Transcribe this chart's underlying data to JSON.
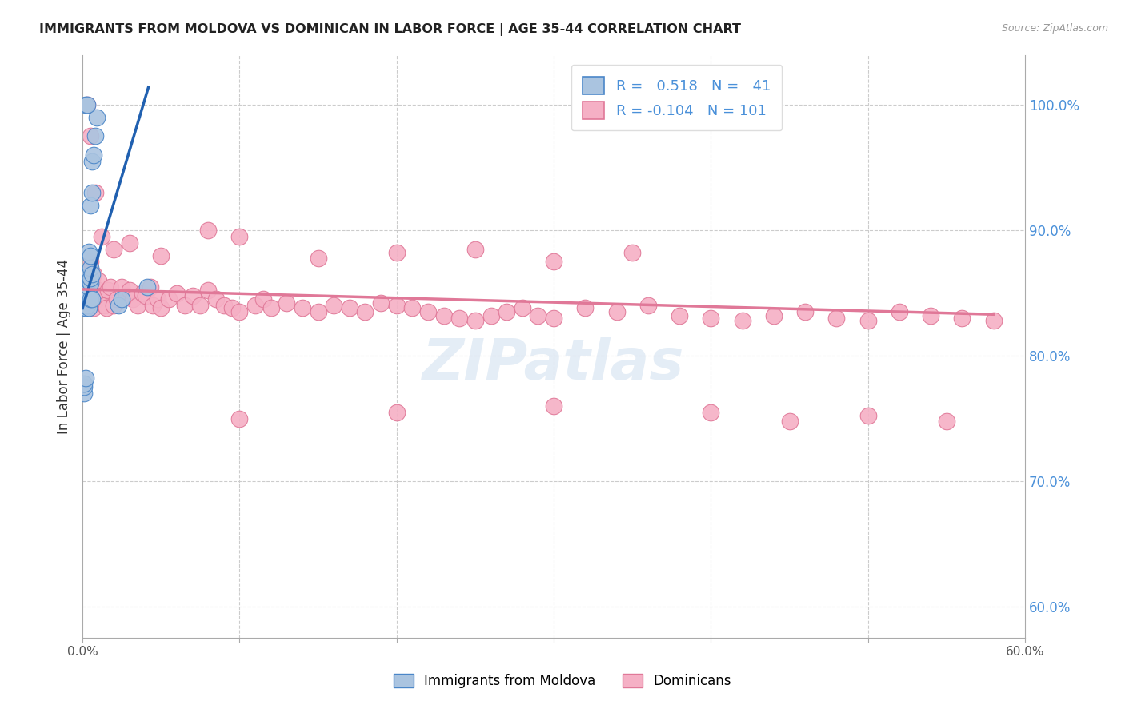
{
  "title": "IMMIGRANTS FROM MOLDOVA VS DOMINICAN IN LABOR FORCE | AGE 35-44 CORRELATION CHART",
  "source": "Source: ZipAtlas.com",
  "ylabel": "In Labor Force | Age 35-44",
  "ylabel_right_ticks": [
    "100.0%",
    "90.0%",
    "80.0%",
    "70.0%",
    "60.0%"
  ],
  "ylabel_right_vals": [
    1.0,
    0.9,
    0.8,
    0.7,
    0.6
  ],
  "xmin": 0.0,
  "xmax": 0.6,
  "ymin": 0.575,
  "ymax": 1.04,
  "legend_r_moldova": "0.518",
  "legend_n_moldova": "41",
  "legend_r_dominican": "-0.104",
  "legend_n_dominican": "101",
  "color_moldova_fill": "#aac4e0",
  "color_moldova_edge": "#4a86c8",
  "color_dominican_fill": "#f5b0c5",
  "color_dominican_edge": "#e07898",
  "color_moldova_line": "#2060b0",
  "color_dominican_line": "#e07898",
  "watermark": "ZIPatlas",
  "moldova_x": [
    0.0005,
    0.001,
    0.001,
    0.0015,
    0.002,
    0.002,
    0.002,
    0.002,
    0.003,
    0.003,
    0.003,
    0.003,
    0.003,
    0.003,
    0.003,
    0.004,
    0.004,
    0.004,
    0.004,
    0.005,
    0.005,
    0.005,
    0.005,
    0.005,
    0.006,
    0.006,
    0.006,
    0.007,
    0.008,
    0.009,
    0.001,
    0.002,
    0.003,
    0.004,
    0.005,
    0.006,
    0.023,
    0.025,
    0.041,
    0.002,
    0.003
  ],
  "moldova_y": [
    0.775,
    0.77,
    0.775,
    0.845,
    0.838,
    0.84,
    0.838,
    0.848,
    0.84,
    0.843,
    0.846,
    0.85,
    0.858,
    0.86,
    0.863,
    0.85,
    0.855,
    0.86,
    0.883,
    0.858,
    0.862,
    0.87,
    0.88,
    0.92,
    0.865,
    0.93,
    0.955,
    0.96,
    0.975,
    0.99,
    0.778,
    0.782,
    0.84,
    0.838,
    0.845,
    0.845,
    0.84,
    0.845,
    0.855,
    1.0,
    1.0
  ],
  "dominican_x": [
    0.002,
    0.003,
    0.003,
    0.003,
    0.004,
    0.004,
    0.004,
    0.005,
    0.005,
    0.006,
    0.006,
    0.007,
    0.007,
    0.008,
    0.009,
    0.01,
    0.01,
    0.012,
    0.014,
    0.015,
    0.016,
    0.018,
    0.02,
    0.022,
    0.025,
    0.028,
    0.03,
    0.032,
    0.035,
    0.038,
    0.04,
    0.043,
    0.045,
    0.048,
    0.05,
    0.055,
    0.06,
    0.065,
    0.07,
    0.075,
    0.08,
    0.085,
    0.09,
    0.095,
    0.1,
    0.11,
    0.115,
    0.12,
    0.13,
    0.14,
    0.15,
    0.16,
    0.17,
    0.18,
    0.19,
    0.2,
    0.21,
    0.22,
    0.23,
    0.24,
    0.25,
    0.26,
    0.27,
    0.28,
    0.29,
    0.3,
    0.32,
    0.34,
    0.36,
    0.38,
    0.4,
    0.42,
    0.44,
    0.46,
    0.48,
    0.5,
    0.52,
    0.54,
    0.56,
    0.58,
    0.003,
    0.005,
    0.008,
    0.012,
    0.02,
    0.03,
    0.05,
    0.08,
    0.1,
    0.15,
    0.2,
    0.25,
    0.3,
    0.35,
    0.4,
    0.45,
    0.5,
    0.55,
    0.1,
    0.2,
    0.3
  ],
  "dominican_y": [
    0.84,
    0.848,
    0.855,
    0.862,
    0.86,
    0.855,
    0.87,
    0.858,
    0.875,
    0.855,
    0.86,
    0.865,
    0.838,
    0.848,
    0.845,
    0.852,
    0.86,
    0.848,
    0.84,
    0.838,
    0.852,
    0.855,
    0.84,
    0.845,
    0.855,
    0.848,
    0.852,
    0.845,
    0.84,
    0.85,
    0.848,
    0.855,
    0.84,
    0.845,
    0.838,
    0.845,
    0.85,
    0.84,
    0.848,
    0.84,
    0.852,
    0.845,
    0.84,
    0.838,
    0.835,
    0.84,
    0.845,
    0.838,
    0.842,
    0.838,
    0.835,
    0.84,
    0.838,
    0.835,
    0.842,
    0.84,
    0.838,
    0.835,
    0.832,
    0.83,
    0.828,
    0.832,
    0.835,
    0.838,
    0.832,
    0.83,
    0.838,
    0.835,
    0.84,
    0.832,
    0.83,
    0.828,
    0.832,
    0.835,
    0.83,
    0.828,
    0.835,
    0.832,
    0.83,
    0.828,
    1.0,
    0.975,
    0.93,
    0.895,
    0.885,
    0.89,
    0.88,
    0.9,
    0.895,
    0.878,
    0.882,
    0.885,
    0.875,
    0.882,
    0.755,
    0.748,
    0.752,
    0.748,
    0.75,
    0.755,
    0.76
  ],
  "xtick_positions": [
    0.0,
    0.1,
    0.2,
    0.3,
    0.4,
    0.5,
    0.6
  ],
  "xtick_labels": [
    "0.0%",
    "",
    "",
    "",
    "",
    "",
    "60.0%"
  ]
}
